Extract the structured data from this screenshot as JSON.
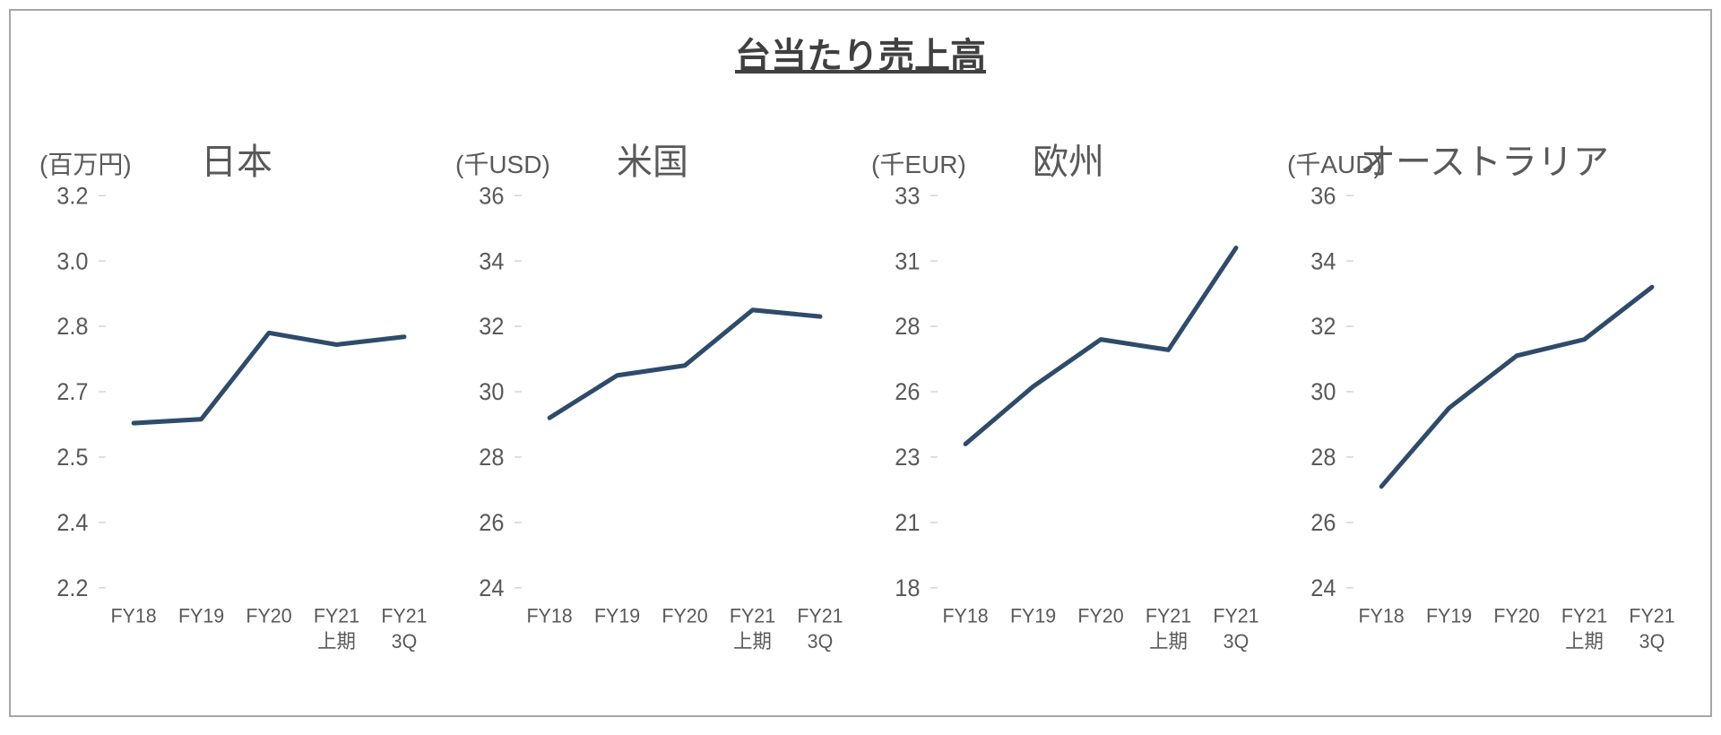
{
  "title": "台当たり売上高",
  "colors": {
    "text": "#595959",
    "title": "#404040",
    "frame_border": "#a6a6a6",
    "tick": "#bfbfbf",
    "line": "#2e4b6b",
    "background": "#ffffff"
  },
  "line_width": 5,
  "x_categories": [
    "FY18",
    "FY19",
    "FY20",
    "FY21\n上期",
    "FY21\n3Q"
  ],
  "panels": [
    {
      "id": "japan",
      "unit": "(百万円)",
      "region": "日本",
      "ymin": 2.2,
      "ymax": 3.2,
      "yticks": [
        "3.2",
        "3.0",
        "2.8",
        "2.7",
        "2.5",
        "2.4",
        "2.2"
      ],
      "ytick_values": [
        3.2,
        3.0,
        2.8,
        2.7,
        2.5,
        2.4,
        2.2
      ],
      "ytick_decimals": 1,
      "values": [
        2.62,
        2.63,
        2.85,
        2.82,
        2.84
      ]
    },
    {
      "id": "us",
      "unit": "(千USD)",
      "region": "米国",
      "ymin": 24,
      "ymax": 36,
      "yticks": [
        "36",
        "34",
        "32",
        "30",
        "28",
        "26",
        "24"
      ],
      "ytick_values": [
        36,
        34,
        32,
        30,
        28,
        26,
        24
      ],
      "ytick_decimals": 0,
      "values": [
        29.2,
        30.5,
        30.8,
        32.5,
        32.3
      ]
    },
    {
      "id": "eu",
      "unit": "(千EUR)",
      "region": "欧州",
      "ymin": 18,
      "ymax": 33,
      "yticks": [
        "33",
        "31",
        "28",
        "26",
        "23",
        "21",
        "18"
      ],
      "ytick_values": [
        33,
        31,
        28,
        26,
        23,
        21,
        18
      ],
      "ytick_decimals": 0,
      "values": [
        23.5,
        25.7,
        27.5,
        27.1,
        31.0
      ]
    },
    {
      "id": "au",
      "unit": "(千AUD)",
      "region": "オーストラリア",
      "ymin": 24,
      "ymax": 36,
      "yticks": [
        "36",
        "34",
        "32",
        "30",
        "28",
        "26",
        "24"
      ],
      "ytick_values": [
        36,
        34,
        32,
        30,
        28,
        26,
        24
      ],
      "ytick_decimals": 0,
      "values": [
        27.1,
        29.5,
        31.1,
        31.6,
        33.2
      ]
    }
  ]
}
